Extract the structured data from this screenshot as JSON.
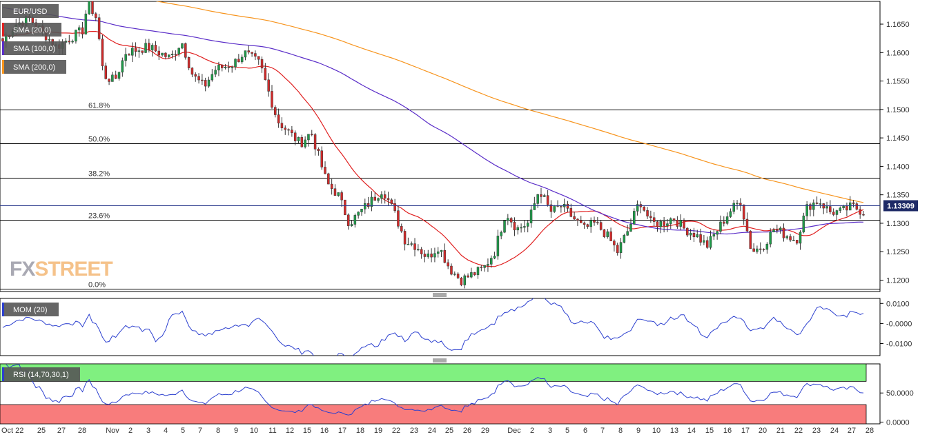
{
  "chart_data": [
    {
      "type": "candlestick",
      "symbol": "EUR/USD",
      "indicators": [
        {
          "name": "SMA (20,0)",
          "color": "#e02020"
        },
        {
          "name": "SMA (100,0)",
          "color": "#5a2dc8"
        },
        {
          "name": "SMA (200,0)",
          "color": "#f7941d"
        }
      ],
      "ylim": [
        1.118,
        1.169
      ],
      "y_ticks": [
        "1.1650",
        "1.1600",
        "1.1550",
        "1.1500",
        "1.1450",
        "1.1400",
        "1.1350",
        "1.1300",
        "1.1250",
        "1.1200"
      ],
      "y_tick_values": [
        1.165,
        1.16,
        1.155,
        1.15,
        1.145,
        1.14,
        1.135,
        1.13,
        1.125,
        1.12
      ],
      "last_price": {
        "label": "1.13309",
        "value": 1.13309
      },
      "fibonacci": [
        {
          "label": "61.8%",
          "value": 1.15
        },
        {
          "label": "50.0%",
          "value": 1.144
        },
        {
          "label": "38.2%",
          "value": 1.138
        },
        {
          "label": "23.6%",
          "value": 1.1306
        },
        {
          "label": "0.0%",
          "value": 1.1185
        }
      ],
      "candles_note": "approximate 4h candles read from chart",
      "path_points": [
        [
          1.162,
          0
        ],
        [
          1.165,
          12
        ],
        [
          1.166,
          24
        ],
        [
          1.161,
          48
        ],
        [
          1.164,
          72
        ],
        [
          1.169,
          76
        ],
        [
          1.166,
          84
        ],
        [
          1.156,
          90
        ],
        [
          1.155,
          100
        ],
        [
          1.16,
          110
        ],
        [
          1.161,
          130
        ],
        [
          1.159,
          150
        ],
        [
          1.162,
          160
        ],
        [
          1.156,
          170
        ],
        [
          1.154,
          180
        ],
        [
          1.157,
          190
        ],
        [
          1.158,
          206
        ],
        [
          1.16,
          216
        ],
        [
          1.158,
          230
        ],
        [
          1.148,
          246
        ],
        [
          1.146,
          256
        ],
        [
          1.144,
          266
        ],
        [
          1.146,
          276
        ],
        [
          1.137,
          290
        ],
        [
          1.135,
          300
        ],
        [
          1.13,
          310
        ],
        [
          1.132,
          320
        ],
        [
          1.134,
          330
        ],
        [
          1.136,
          340
        ],
        [
          1.132,
          350
        ],
        [
          1.127,
          360
        ],
        [
          1.126,
          370
        ],
        [
          1.124,
          380
        ],
        [
          1.126,
          390
        ],
        [
          1.122,
          400
        ],
        [
          1.12,
          410
        ],
        [
          1.121,
          420
        ],
        [
          1.122,
          430
        ],
        [
          1.125,
          440
        ],
        [
          1.132,
          450
        ],
        [
          1.129,
          460
        ],
        [
          1.13,
          470
        ],
        [
          1.136,
          480
        ],
        [
          1.132,
          490
        ],
        [
          1.133,
          500
        ],
        [
          1.131,
          510
        ],
        [
          1.129,
          520
        ],
        [
          1.13,
          530
        ],
        [
          1.128,
          540
        ],
        [
          1.125,
          550
        ],
        [
          1.129,
          560
        ],
        [
          1.134,
          570
        ],
        [
          1.13,
          580
        ],
        [
          1.13,
          590
        ],
        [
          1.131,
          600
        ],
        [
          1.129,
          610
        ],
        [
          1.128,
          620
        ],
        [
          1.126,
          630
        ],
        [
          1.129,
          640
        ],
        [
          1.132,
          650
        ],
        [
          1.134,
          660
        ],
        [
          1.125,
          670
        ],
        [
          1.126,
          680
        ],
        [
          1.129,
          690
        ],
        [
          1.128,
          700
        ],
        [
          1.127,
          710
        ],
        [
          1.133,
          720
        ],
        [
          1.134,
          730
        ],
        [
          1.132,
          740
        ],
        [
          1.132,
          750
        ],
        [
          1.133,
          760
        ],
        [
          1.132,
          770
        ]
      ],
      "x_labels": [
        "Oct 22",
        "25",
        "27",
        "28",
        "Nov",
        "2",
        "3",
        "4",
        "5",
        "7",
        "8",
        "9",
        "10",
        "11",
        "12",
        "15",
        "16",
        "17",
        "18",
        "19",
        "22",
        "23",
        "24",
        "25",
        "26",
        "29",
        "Dec",
        "2",
        "3",
        "5",
        "6",
        "7",
        "8",
        "9",
        "10",
        "13",
        "14",
        "15",
        "16",
        "17",
        "20",
        "21",
        "22",
        "23",
        "24",
        "27",
        "28"
      ]
    },
    {
      "type": "line",
      "name": "MOM (20)",
      "color": "#2b3fcf",
      "y_ticks": [
        "0.0100",
        "-0.0000",
        "-0.0100"
      ],
      "y_tick_values": [
        0.01,
        0.0,
        -0.01
      ],
      "ylim": [
        -0.016,
        0.0125
      ]
    },
    {
      "type": "line",
      "name": "RSI (14,70,30,1)",
      "color": "#2b3fcf",
      "y_ticks": [
        "50.0000",
        "0.0000"
      ],
      "y_tick_values": [
        50,
        0
      ],
      "ylim": [
        -3,
        100
      ],
      "overbought": 70,
      "oversold": 30,
      "overbought_color": "#80f080",
      "oversold_color": "#f87c7c"
    }
  ],
  "logo": {
    "part1": "FX",
    "part2": "STREET",
    "color1": "#a9a9b3",
    "color2": "#f5c28a"
  }
}
